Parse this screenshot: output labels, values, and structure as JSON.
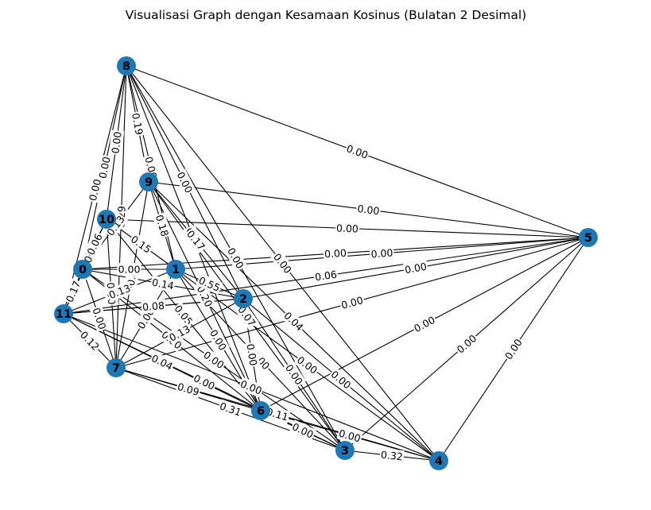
{
  "title": "Visualisasi Graph dengan Kesamaan Kosinus (Bulatan 2 Desimal)",
  "node_color": "#1f77b4",
  "nodes": [
    {
      "id": "0"
    },
    {
      "id": "1"
    },
    {
      "id": "2"
    },
    {
      "id": "3"
    },
    {
      "id": "4"
    },
    {
      "id": "5"
    },
    {
      "id": "6"
    },
    {
      "id": "7"
    },
    {
      "id": "8"
    },
    {
      "id": "9"
    },
    {
      "id": "10"
    },
    {
      "id": "11"
    }
  ],
  "edges": [
    {
      "source": "8",
      "target": "5",
      "label": "0.00"
    },
    {
      "source": "9",
      "target": "5",
      "label": "0.00"
    },
    {
      "source": "10",
      "target": "5",
      "label": "0.00"
    },
    {
      "source": "0",
      "target": "5",
      "label": "0.00"
    },
    {
      "source": "1",
      "target": "5",
      "label": "0.00"
    },
    {
      "source": "11",
      "target": "5",
      "label": "0.06"
    },
    {
      "source": "2",
      "target": "5",
      "label": "0.00"
    },
    {
      "source": "7",
      "target": "5",
      "label": "0.00"
    },
    {
      "source": "6",
      "target": "5",
      "label": "0.00"
    },
    {
      "source": "3",
      "target": "5",
      "label": "0.00"
    },
    {
      "source": "4",
      "target": "5",
      "label": "0.00"
    },
    {
      "source": "3",
      "target": "4",
      "label": "0.32"
    },
    {
      "source": "7",
      "target": "3",
      "label": "0.31"
    },
    {
      "source": "7",
      "target": "4",
      "label": "0.11"
    },
    {
      "source": "7",
      "target": "6",
      "label": "0.09"
    },
    {
      "source": "11",
      "target": "7",
      "label": "0.12"
    },
    {
      "source": "11",
      "target": "6",
      "label": "0.04"
    },
    {
      "source": "11",
      "target": "4",
      "label": "0.00"
    },
    {
      "source": "11",
      "target": "3",
      "label": "0.00"
    },
    {
      "source": "8",
      "target": "9",
      "label": "0.19"
    },
    {
      "source": "8",
      "target": "10",
      "label": "0.00"
    },
    {
      "source": "8",
      "target": "0",
      "label": "0.00"
    },
    {
      "source": "8",
      "target": "11",
      "label": "0.00"
    },
    {
      "source": "8",
      "target": "7",
      "label": "0.29"
    },
    {
      "source": "8",
      "target": "2",
      "label": "0.00"
    },
    {
      "source": "8",
      "target": "4",
      "label": "0.00"
    },
    {
      "source": "8",
      "target": "6",
      "label": "0.00"
    },
    {
      "source": "8",
      "target": "3",
      "label": "0.00"
    },
    {
      "source": "8",
      "target": "1",
      "label": "0.00"
    },
    {
      "source": "9",
      "target": "4",
      "label": "0.04"
    },
    {
      "source": "9",
      "target": "3",
      "label": "0.07"
    },
    {
      "source": "9",
      "target": "6",
      "label": "0.20"
    },
    {
      "source": "9",
      "target": "2",
      "label": "0.17"
    },
    {
      "source": "9",
      "target": "1",
      "label": "0.18"
    },
    {
      "source": "9",
      "target": "0",
      "label": "0.13"
    },
    {
      "source": "9",
      "target": "7",
      "label": "0.00"
    },
    {
      "source": "10",
      "target": "0",
      "label": "0.06"
    },
    {
      "source": "10",
      "target": "1",
      "label": "0.15"
    },
    {
      "source": "10",
      "target": "6",
      "label": "0.05"
    },
    {
      "source": "10",
      "target": "7",
      "label": "0.00"
    },
    {
      "source": "10",
      "target": "11",
      "label": "0.00"
    },
    {
      "source": "0",
      "target": "1",
      "label": "0.00"
    },
    {
      "source": "0",
      "target": "2",
      "label": "0.14"
    },
    {
      "source": "0",
      "target": "11",
      "label": "0.17"
    },
    {
      "source": "0",
      "target": "7",
      "label": "0.00"
    },
    {
      "source": "0",
      "target": "6",
      "label": "0.00"
    },
    {
      "source": "0",
      "target": "3",
      "label": "0.00"
    },
    {
      "source": "1",
      "target": "2",
      "label": "0.55"
    },
    {
      "source": "1",
      "target": "3",
      "label": "0.00"
    },
    {
      "source": "1",
      "target": "6",
      "label": "0.00"
    },
    {
      "source": "1",
      "target": "4",
      "label": "0.00"
    },
    {
      "source": "1",
      "target": "11",
      "label": "0.13"
    },
    {
      "source": "1",
      "target": "7",
      "label": "0.00"
    },
    {
      "source": "2",
      "target": "7",
      "label": "0.13"
    },
    {
      "source": "2",
      "target": "6",
      "label": "0.00"
    },
    {
      "source": "2",
      "target": "3",
      "label": "0.00"
    },
    {
      "source": "2",
      "target": "4",
      "label": "0.00"
    },
    {
      "source": "2",
      "target": "11",
      "label": "0.00"
    },
    {
      "source": "6",
      "target": "3",
      "label": "0.00"
    },
    {
      "source": "6",
      "target": "4",
      "label": "0.00"
    },
    {
      "source": "11",
      "target": "2",
      "label": "0.08"
    }
  ]
}
